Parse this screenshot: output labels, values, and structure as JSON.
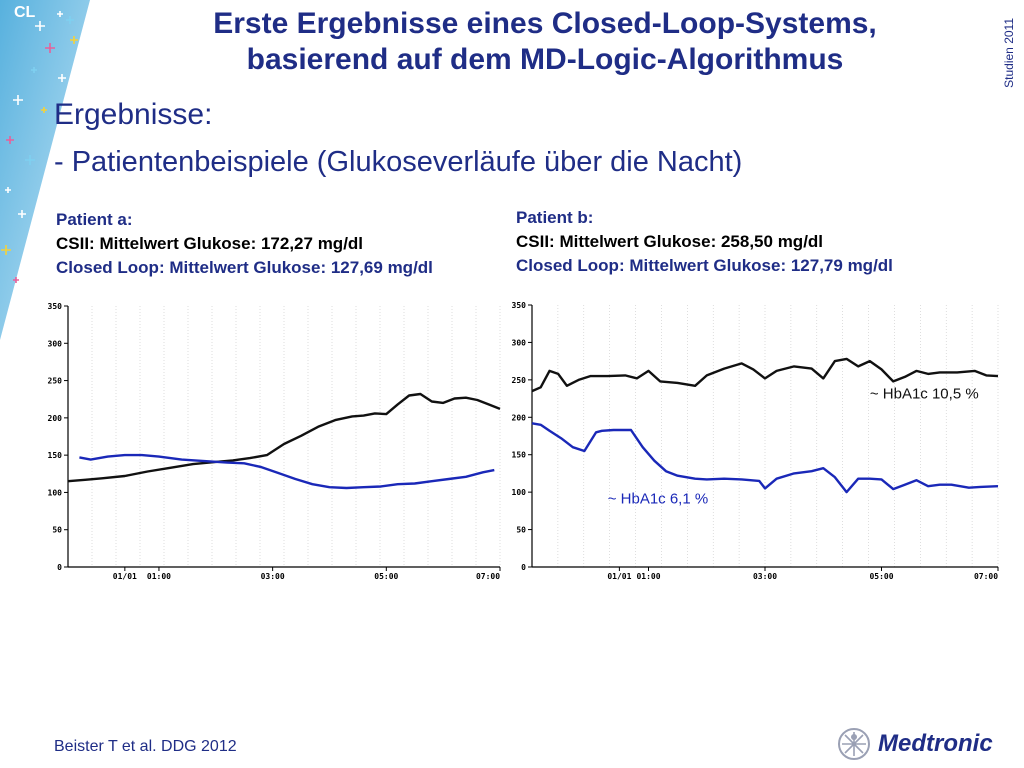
{
  "header": {
    "badge": "CL",
    "title_line1": "Erste Ergebnisse eines Closed-Loop-Systems,",
    "title_line2": "basierend auf dem MD-Logic-Algorithmus",
    "side_label": "Studien 2011"
  },
  "heading": "Ergebnisse:",
  "subheading": "- Patientenbeispiele (Glukoseverläufe über die Nacht)",
  "patients": [
    {
      "label": "Patient a:",
      "csii": "CSII: Mittelwert Glukose: 172,27 mg/dl",
      "closed_loop": "Closed Loop: Mittelwert Glukose: 127,69 mg/dl"
    },
    {
      "label": "Patient b:",
      "csii": "CSII: Mittelwert Glukose: 258,50 mg/dl",
      "closed_loop": "Closed Loop: Mittelwert Glukose: 127,79 mg/dl"
    }
  ],
  "footer": "Beister T et al. DDG 2012",
  "logo_text": "Medtronic",
  "colors": {
    "title": "#1f2d86",
    "csii_line": "#111111",
    "closed_loop_line": "#1a28b8",
    "grid": "#c8c8c8"
  },
  "chart_data": [
    {
      "type": "line",
      "ylim": [
        0,
        350
      ],
      "xlim": [
        0,
        7.6
      ],
      "yticks": [
        "0",
        "50",
        "100",
        "150",
        "200",
        "250",
        "300",
        "350"
      ],
      "xticks": [
        {
          "x": 1.0,
          "label": "01/01"
        },
        {
          "x": 1.6,
          "label": "01:00"
        },
        {
          "x": 3.6,
          "label": "03:00"
        },
        {
          "x": 5.6,
          "label": "05:00"
        },
        {
          "x": 7.6,
          "label": "07:00"
        }
      ],
      "annotations": [],
      "series": [
        {
          "color": "#111111",
          "x": [
            0,
            0.3,
            0.6,
            1.0,
            1.4,
            1.8,
            2.2,
            2.6,
            2.9,
            3.2,
            3.5,
            3.8,
            4.1,
            4.4,
            4.7,
            5.0,
            5.2,
            5.4,
            5.6,
            5.8,
            6.0,
            6.2,
            6.4,
            6.6,
            6.8,
            7.0,
            7.2,
            7.4,
            7.6
          ],
          "y": [
            115,
            117,
            119,
            122,
            128,
            133,
            138,
            141,
            143,
            146,
            150,
            165,
            176,
            188,
            197,
            202,
            203,
            206,
            205,
            218,
            230,
            232,
            222,
            220,
            226,
            227,
            224,
            218,
            212
          ]
        },
        {
          "color": "#1a28b8",
          "x": [
            0.2,
            0.4,
            0.7,
            1.0,
            1.3,
            1.6,
            2.0,
            2.4,
            2.8,
            3.1,
            3.4,
            3.7,
            4.0,
            4.3,
            4.6,
            4.9,
            5.2,
            5.5,
            5.8,
            6.1,
            6.4,
            6.7,
            7.0,
            7.3,
            7.5
          ],
          "y": [
            147,
            144,
            148,
            150,
            150,
            148,
            144,
            142,
            140,
            139,
            134,
            126,
            118,
            111,
            107,
            106,
            107,
            108,
            111,
            112,
            115,
            118,
            121,
            127,
            130
          ]
        }
      ]
    },
    {
      "type": "line",
      "ylim": [
        0,
        350
      ],
      "xlim": [
        0,
        8.0
      ],
      "yticks": [
        "0",
        "50",
        "100",
        "150",
        "200",
        "250",
        "300",
        "350"
      ],
      "xticks": [
        {
          "x": 1.5,
          "label": "01/01"
        },
        {
          "x": 2.0,
          "label": "01:00"
        },
        {
          "x": 4.0,
          "label": "03:00"
        },
        {
          "x": 6.0,
          "label": "05:00"
        },
        {
          "x": 8.0,
          "label": "07:00"
        }
      ],
      "annotations": [
        {
          "text": "~ HbA1c 10,5 %",
          "x": 5.8,
          "y": 225,
          "color": "#111111"
        },
        {
          "text": "~ HbA1c 6,1 %",
          "x": 1.3,
          "y": 85,
          "color": "#1a28b8"
        }
      ],
      "series": [
        {
          "color": "#111111",
          "x": [
            0,
            0.15,
            0.3,
            0.45,
            0.6,
            0.8,
            1.0,
            1.3,
            1.6,
            1.8,
            2.0,
            2.2,
            2.5,
            2.8,
            3.0,
            3.3,
            3.6,
            3.8,
            4.0,
            4.2,
            4.5,
            4.8,
            5.0,
            5.2,
            5.4,
            5.6,
            5.8,
            6.0,
            6.2,
            6.4,
            6.6,
            6.8,
            7.0,
            7.3,
            7.6,
            7.8,
            8.0
          ],
          "y": [
            235,
            240,
            262,
            258,
            242,
            250,
            255,
            255,
            256,
            252,
            262,
            248,
            246,
            242,
            256,
            265,
            272,
            264,
            252,
            262,
            268,
            265,
            252,
            275,
            278,
            268,
            275,
            264,
            248,
            254,
            262,
            258,
            260,
            260,
            262,
            256,
            255
          ]
        },
        {
          "color": "#1a28b8",
          "x": [
            0,
            0.15,
            0.3,
            0.5,
            0.7,
            0.9,
            1.1,
            1.2,
            1.4,
            1.7,
            1.9,
            2.1,
            2.3,
            2.5,
            2.8,
            3.0,
            3.3,
            3.6,
            3.9,
            4.0,
            4.2,
            4.5,
            4.8,
            5.0,
            5.2,
            5.4,
            5.6,
            5.8,
            6.0,
            6.2,
            6.4,
            6.6,
            6.8,
            7.0,
            7.2,
            7.5,
            7.7,
            8.0
          ],
          "y": [
            192,
            190,
            182,
            172,
            160,
            155,
            180,
            182,
            183,
            183,
            160,
            142,
            128,
            122,
            118,
            117,
            118,
            117,
            115,
            105,
            118,
            125,
            128,
            132,
            120,
            100,
            118,
            118,
            117,
            104,
            110,
            116,
            108,
            110,
            110,
            106,
            107,
            108
          ]
        }
      ]
    }
  ]
}
